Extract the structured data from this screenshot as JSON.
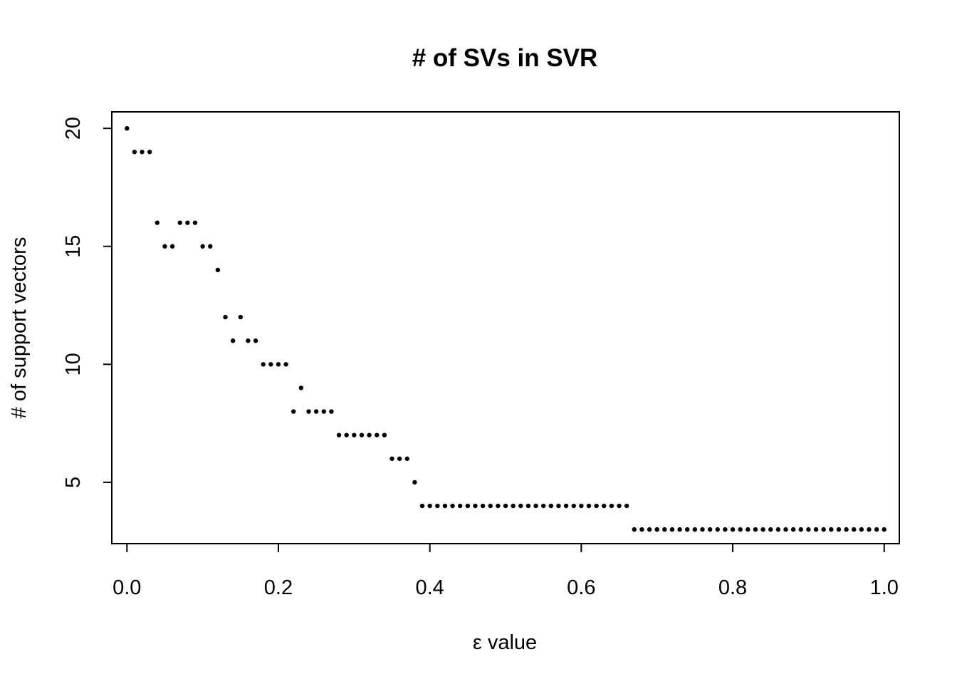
{
  "chart_data": {
    "type": "scatter",
    "title": "# of SVs in SVR",
    "xlabel": "ε value",
    "ylabel": "# of support vectors",
    "xlim": [
      -0.02,
      1.02
    ],
    "ylim": [
      2.4,
      20.7
    ],
    "x_ticks": [
      0.0,
      0.2,
      0.4,
      0.6,
      0.8,
      1.0
    ],
    "x_tick_labels": [
      "0.0",
      "0.2",
      "0.4",
      "0.6",
      "0.8",
      "1.0"
    ],
    "y_ticks": [
      5,
      10,
      15,
      20
    ],
    "y_tick_labels": [
      "5",
      "10",
      "15",
      "20"
    ],
    "grid": false,
    "series": [
      {
        "color": "#000000",
        "x": [
          0.0,
          0.01,
          0.02,
          0.03,
          0.04,
          0.05,
          0.06,
          0.07,
          0.08,
          0.09,
          0.1,
          0.11,
          0.12,
          0.13,
          0.14,
          0.15,
          0.16,
          0.17,
          0.18,
          0.19,
          0.2,
          0.21,
          0.22,
          0.23,
          0.24,
          0.25,
          0.26,
          0.27,
          0.28,
          0.29,
          0.3,
          0.31,
          0.32,
          0.33,
          0.34,
          0.35,
          0.36,
          0.37,
          0.38,
          0.39,
          0.4,
          0.41,
          0.42,
          0.43,
          0.44,
          0.45,
          0.46,
          0.47,
          0.48,
          0.49,
          0.5,
          0.51,
          0.52,
          0.53,
          0.54,
          0.55,
          0.56,
          0.57,
          0.58,
          0.59,
          0.6,
          0.61,
          0.62,
          0.63,
          0.64,
          0.65,
          0.66,
          0.67,
          0.68,
          0.69,
          0.7,
          0.71,
          0.72,
          0.73,
          0.74,
          0.75,
          0.76,
          0.77,
          0.78,
          0.79,
          0.8,
          0.81,
          0.82,
          0.83,
          0.84,
          0.85,
          0.86,
          0.87,
          0.88,
          0.89,
          0.9,
          0.91,
          0.92,
          0.93,
          0.94,
          0.95,
          0.96,
          0.97,
          0.98,
          0.99,
          1.0
        ],
        "y": [
          20,
          19,
          19,
          19,
          16,
          15,
          15,
          16,
          16,
          16,
          15,
          15,
          14,
          12,
          11,
          12,
          11,
          11,
          10,
          10,
          10,
          10,
          8,
          9,
          8,
          8,
          8,
          8,
          7,
          7,
          7,
          7,
          7,
          7,
          7,
          6,
          6,
          6,
          5,
          4,
          4,
          4,
          4,
          4,
          4,
          4,
          4,
          4,
          4,
          4,
          4,
          4,
          4,
          4,
          4,
          4,
          4,
          4,
          4,
          4,
          4,
          4,
          4,
          4,
          4,
          4,
          4,
          3,
          3,
          3,
          3,
          3,
          3,
          3,
          3,
          3,
          3,
          3,
          3,
          3,
          3,
          3,
          3,
          3,
          3,
          3,
          3,
          3,
          3,
          3,
          3,
          3,
          3,
          3,
          3,
          3,
          3,
          3,
          3,
          3,
          3
        ]
      }
    ]
  }
}
